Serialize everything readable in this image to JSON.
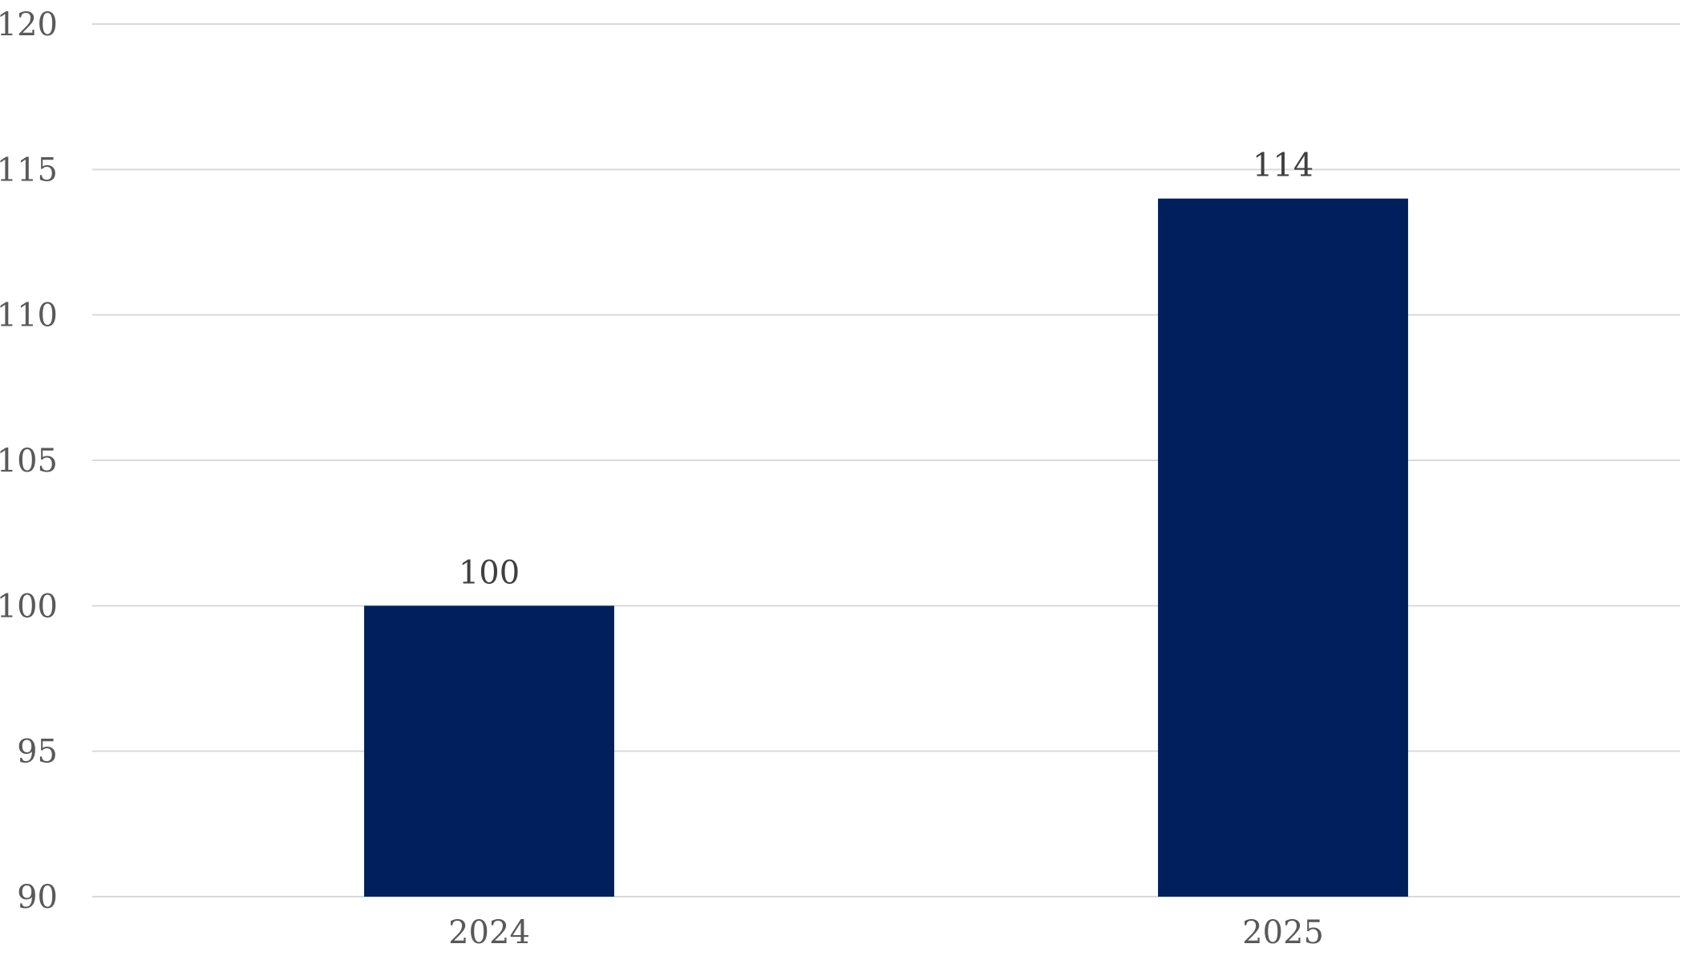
{
  "chart_data": {
    "type": "bar",
    "title": "",
    "xlabel": "",
    "ylabel": "",
    "categories": [
      "2024",
      "2025"
    ],
    "values": [
      100,
      114
    ],
    "data_labels": [
      "100",
      "114"
    ],
    "ylim": [
      90,
      120
    ],
    "yticks": [
      90,
      95,
      100,
      105,
      110,
      115,
      120
    ],
    "ytick_labels": [
      "90",
      "95",
      "100",
      "105",
      "110",
      "115",
      "120"
    ],
    "grid": true,
    "legend": "none",
    "bar_color": "#001f5c",
    "gridline_color": "#d9d9d9",
    "tick_label_color": "#595959"
  }
}
